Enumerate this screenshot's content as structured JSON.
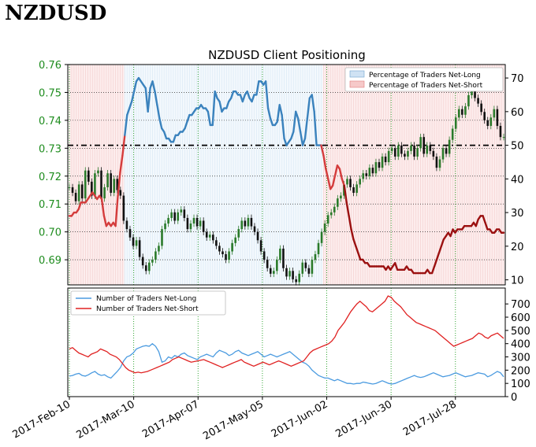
{
  "page": {
    "title": "NZDUSD"
  },
  "chart_data": [
    {
      "type": "line",
      "title": "NZDUSD Client Positioning",
      "x_dates": [
        "2017-Feb-10",
        "2017-Mar-10",
        "2017-Apr-07",
        "2017-May-05",
        "2017-Jun-02",
        "2017-Jun-30",
        "2017-Jul-28"
      ],
      "left_axis": {
        "range": [
          0.681,
          0.76
        ],
        "ticks": [
          "0.69",
          "0.70",
          "0.71",
          "0.72",
          "0.73",
          "0.74",
          "0.75",
          "0.76"
        ],
        "color": "#1e8c1e"
      },
      "right_axis": {
        "range": [
          8.5,
          74
        ],
        "ticks": [
          "10",
          "20",
          "30",
          "40",
          "50",
          "60",
          "70"
        ]
      },
      "threshold": 50,
      "legend": [
        "Percentage of Traders Net-Long",
        "Percentage of Traders Net-Short"
      ],
      "colors": {
        "long": "#3a82bd",
        "short": "#d43c3c",
        "short_dark": "#9b1111",
        "up": "#2a7a2a",
        "down": "#111111"
      },
      "price_close": [
        0.716,
        0.714,
        0.711,
        0.717,
        0.712,
        0.722,
        0.718,
        0.713,
        0.721,
        0.722,
        0.712,
        0.716,
        0.721,
        0.714,
        0.719,
        0.715,
        0.713,
        0.704,
        0.701,
        0.698,
        0.695,
        0.697,
        0.691,
        0.688,
        0.686,
        0.689,
        0.69,
        0.693,
        0.695,
        0.701,
        0.703,
        0.705,
        0.707,
        0.704,
        0.707,
        0.708,
        0.705,
        0.701,
        0.703,
        0.705,
        0.702,
        0.704,
        0.7,
        0.698,
        0.699,
        0.697,
        0.695,
        0.693,
        0.692,
        0.69,
        0.693,
        0.696,
        0.698,
        0.701,
        0.704,
        0.702,
        0.705,
        0.702,
        0.7,
        0.697,
        0.693,
        0.69,
        0.687,
        0.685,
        0.686,
        0.69,
        0.694,
        0.687,
        0.684,
        0.686,
        0.683,
        0.682,
        0.685,
        0.689,
        0.687,
        0.685,
        0.69,
        0.692,
        0.696,
        0.7,
        0.703,
        0.706,
        0.707,
        0.709,
        0.712,
        0.713,
        0.717,
        0.719,
        0.716,
        0.714,
        0.717,
        0.719,
        0.721,
        0.72,
        0.723,
        0.721,
        0.725,
        0.723,
        0.727,
        0.725,
        0.729,
        0.73,
        0.727,
        0.731,
        0.728,
        0.727,
        0.729,
        0.731,
        0.727,
        0.73,
        0.734,
        0.728,
        0.731,
        0.729,
        0.727,
        0.723,
        0.726,
        0.73,
        0.728,
        0.733,
        0.737,
        0.741,
        0.744,
        0.742,
        0.745,
        0.749,
        0.752,
        0.748,
        0.746,
        0.743,
        0.74,
        0.738,
        0.741,
        0.744,
        0.738,
        0.734,
        0.734
      ],
      "pct_long": [
        29,
        29,
        30,
        30,
        31,
        33,
        33,
        33,
        34,
        35,
        36,
        35,
        34,
        35,
        34,
        29,
        26,
        27,
        26,
        27,
        26,
        35,
        42,
        47,
        53,
        59,
        61,
        63,
        66,
        69,
        70,
        69,
        68,
        67,
        60,
        67,
        69,
        66,
        62,
        58,
        55,
        54,
        52,
        52,
        51,
        51,
        53,
        53,
        54,
        54,
        55,
        57,
        59,
        59,
        60,
        61,
        61,
        62,
        61,
        61,
        60,
        56,
        56,
        66,
        64,
        63,
        60,
        61,
        61,
        63,
        64,
        66,
        66,
        65,
        65,
        63,
        65,
        66,
        64,
        63,
        65,
        65,
        69,
        69,
        68,
        69,
        61,
        58,
        56,
        56,
        57,
        62,
        59,
        52,
        50,
        51,
        52,
        54,
        60,
        58,
        54,
        50,
        52,
        58,
        64,
        65,
        60,
        50,
        50
      ],
      "pct_short_tail": [
        50,
        47,
        43,
        40,
        37,
        38,
        41,
        44,
        43,
        40,
        38,
        33,
        29,
        25,
        22,
        20,
        18,
        16,
        16,
        15,
        15,
        14,
        14,
        14,
        14,
        14,
        14,
        14,
        13,
        14,
        13,
        14,
        15,
        13,
        13,
        13,
        13,
        14,
        13,
        13,
        12,
        12,
        12,
        12,
        12,
        12,
        13,
        12,
        12,
        14,
        16,
        18,
        20,
        22,
        23,
        24,
        23,
        25,
        24,
        25,
        25,
        25,
        26,
        26,
        26,
        26,
        27,
        26,
        28,
        29,
        29,
        27,
        25,
        25,
        24,
        24,
        25,
        25,
        24,
        24
      ]
    },
    {
      "type": "line",
      "legend": [
        "Number of Traders Net-Long",
        "Number of Traders Net-Short"
      ],
      "y_range": [
        0,
        820
      ],
      "y_ticks": [
        "0",
        "100",
        "200",
        "300",
        "400",
        "500",
        "600",
        "700"
      ],
      "series": [
        {
          "name": "Number of Traders Net-Long",
          "color": "#4b9be0",
          "values": [
            155,
            160,
            170,
            175,
            160,
            155,
            165,
            180,
            190,
            170,
            160,
            165,
            150,
            140,
            165,
            190,
            220,
            270,
            300,
            310,
            330,
            360,
            370,
            380,
            385,
            380,
            400,
            380,
            340,
            260,
            270,
            300,
            290,
            310,
            300,
            320,
            330,
            310,
            300,
            290,
            280,
            300,
            310,
            320,
            310,
            300,
            330,
            350,
            340,
            330,
            310,
            320,
            340,
            350,
            330,
            320,
            310,
            320,
            330,
            340,
            320,
            300,
            310,
            320,
            310,
            300,
            310,
            320,
            330,
            340,
            320,
            300,
            280,
            260,
            250,
            230,
            200,
            180,
            160,
            150,
            140,
            140,
            130,
            120,
            130,
            120,
            110,
            100,
            100,
            95,
            100,
            100,
            110,
            105,
            100,
            95,
            100,
            110,
            120,
            110,
            100,
            95,
            100,
            110,
            120,
            130,
            140,
            150,
            160,
            150,
            145,
            150,
            160,
            170,
            180,
            170,
            160,
            150,
            155,
            160,
            170,
            180,
            170,
            160,
            150,
            155,
            160,
            170,
            180,
            175,
            170,
            150,
            160,
            175,
            190,
            180,
            150
          ]
        },
        {
          "name": "Number of Traders Net-Short",
          "color": "#e02222",
          "values": [
            360,
            370,
            350,
            330,
            320,
            310,
            300,
            320,
            330,
            340,
            360,
            350,
            340,
            320,
            310,
            300,
            280,
            250,
            220,
            200,
            190,
            180,
            185,
            180,
            185,
            190,
            200,
            210,
            220,
            230,
            240,
            250,
            260,
            280,
            290,
            300,
            290,
            280,
            270,
            260,
            265,
            270,
            275,
            280,
            270,
            260,
            250,
            240,
            230,
            220,
            230,
            240,
            250,
            260,
            270,
            280,
            260,
            250,
            240,
            230,
            240,
            250,
            260,
            250,
            240,
            250,
            260,
            270,
            260,
            250,
            240,
            230,
            240,
            250,
            260,
            270,
            300,
            330,
            350,
            360,
            370,
            380,
            390,
            400,
            420,
            450,
            500,
            530,
            560,
            600,
            640,
            670,
            700,
            720,
            700,
            680,
            650,
            640,
            660,
            680,
            700,
            720,
            760,
            750,
            720,
            700,
            680,
            650,
            620,
            600,
            580,
            560,
            550,
            540,
            530,
            520,
            510,
            500,
            480,
            460,
            440,
            420,
            400,
            380,
            390,
            400,
            410,
            420,
            430,
            440,
            460,
            480,
            470,
            450,
            440,
            460,
            470,
            480,
            460,
            440
          ]
        }
      ]
    }
  ]
}
